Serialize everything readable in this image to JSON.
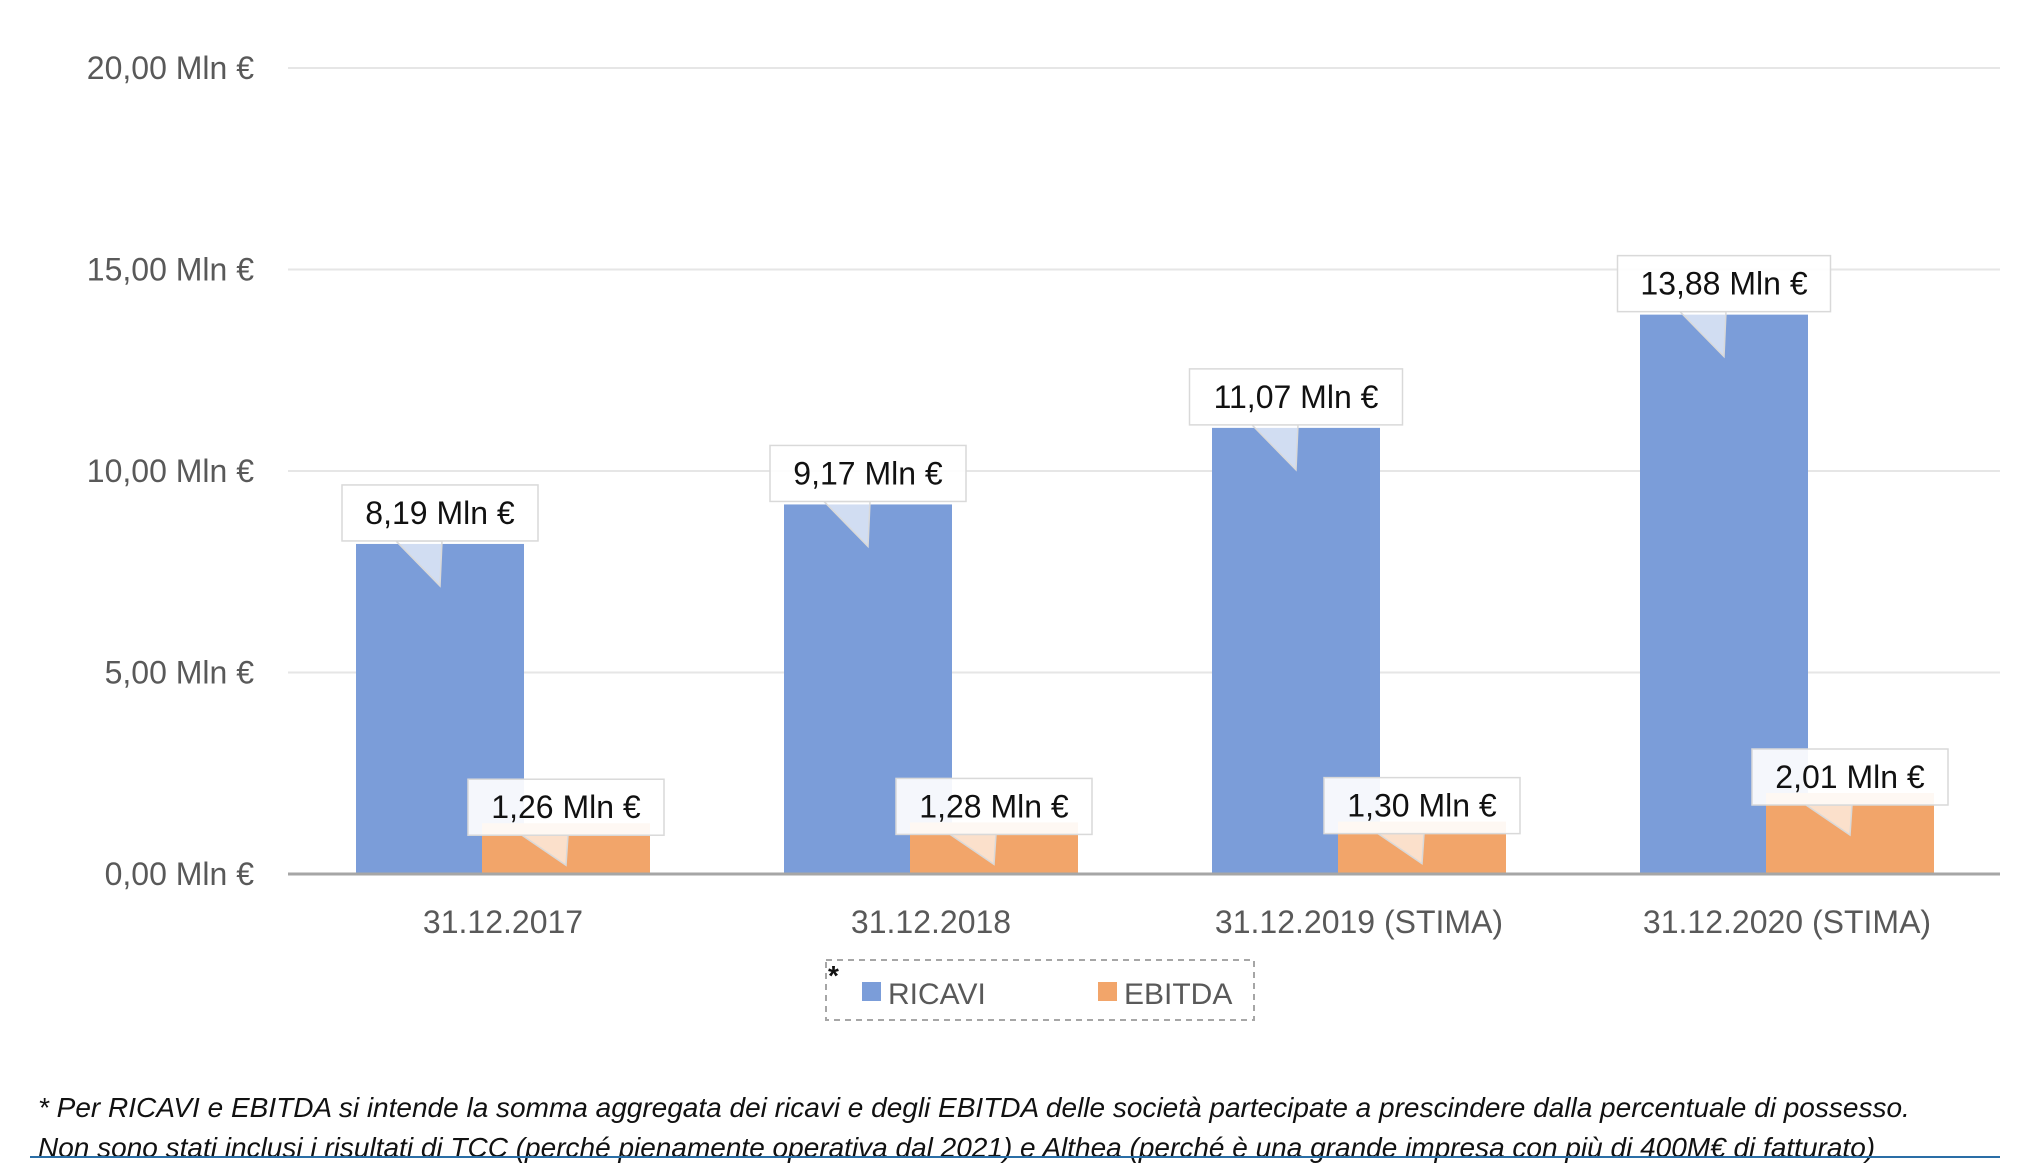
{
  "chart_data": {
    "type": "bar",
    "categories": [
      "31.12.2017",
      "31.12.2018",
      "31.12.2019 (STIMA)",
      "31.12.2020 (STIMA)"
    ],
    "series": [
      {
        "name": "RICAVI",
        "values": [
          8.19,
          9.17,
          11.07,
          13.88
        ],
        "labels": [
          "8,19 Mln €",
          "9,17 Mln €",
          "11,07 Mln €",
          "13,88 Mln €"
        ]
      },
      {
        "name": "EBITDA",
        "values": [
          1.26,
          1.28,
          1.3,
          2.01
        ],
        "labels": [
          "1,26 Mln €",
          "1,28 Mln €",
          "1,30 Mln €",
          "2,01 Mln €"
        ]
      }
    ],
    "yticks": [
      0,
      5,
      10,
      15,
      20
    ],
    "ytick_labels": [
      "0,00 Mln €",
      "5,00 Mln €",
      "10,00 Mln €",
      "15,00 Mln €",
      "20,00 Mln €"
    ],
    "ylim": [
      0,
      20
    ],
    "grid": true,
    "legend": {
      "position": "bottom",
      "marker": "*"
    },
    "colors": {
      "RICAVI": "#7b9dd9",
      "EBITDA": "#f2a56a",
      "grid": "#e6e6e6",
      "axis": "#a6a6a6",
      "text": "#595959"
    }
  },
  "footnote": [
    "* Per RICAVI e EBITDA si intende la somma aggregata dei ricavi e degli EBITDA delle società partecipate a prescindere dalla percentuale di possesso.",
    "Non sono stati inclusi i risultati di TCC (perché pienamente operativa dal 2021) e Althea (perché è una grande impresa con più di 400M€ di fatturato)"
  ]
}
